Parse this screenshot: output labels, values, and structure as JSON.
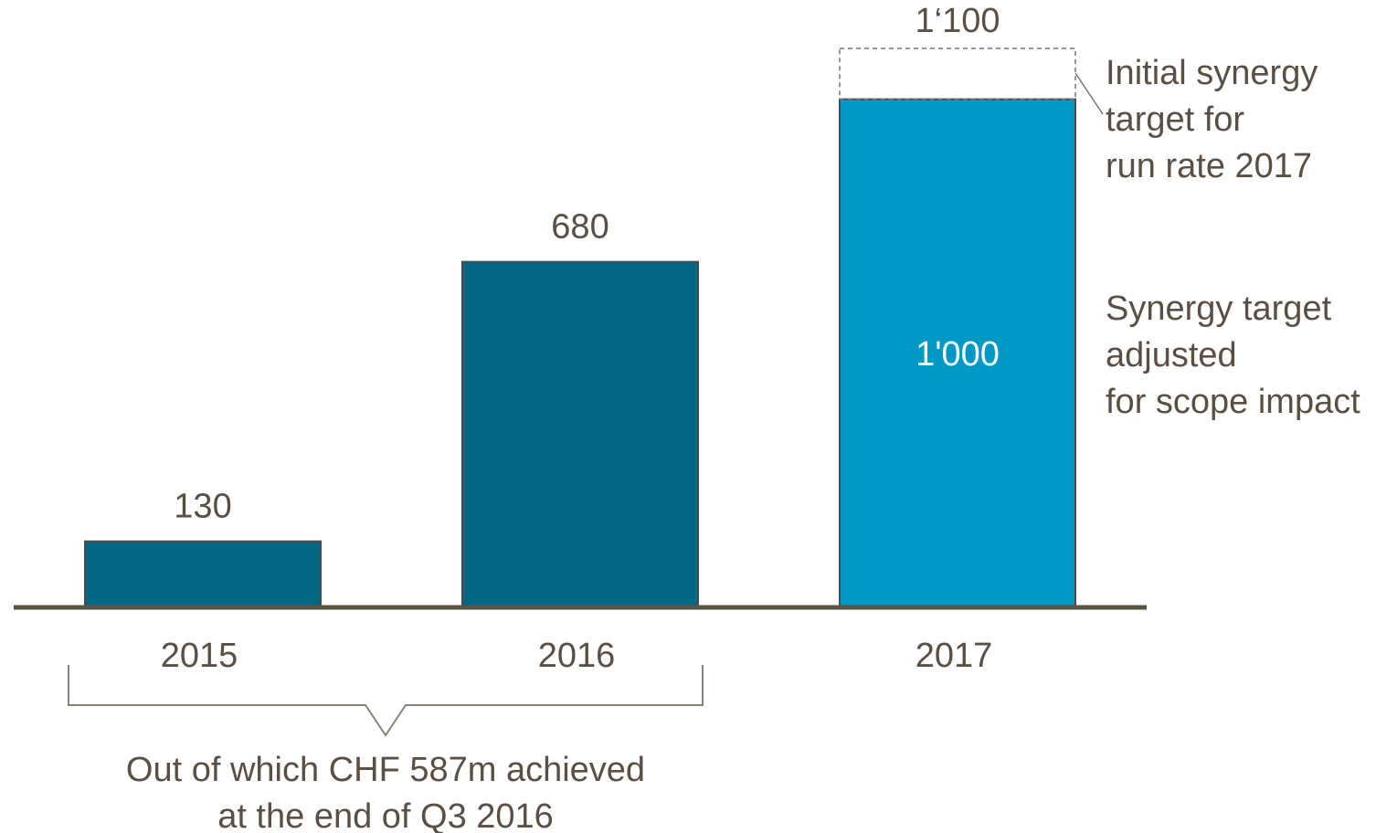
{
  "chart_data": {
    "type": "bar",
    "categories": [
      "2015",
      "2016",
      "2017"
    ],
    "values": [
      130,
      680,
      1000
    ],
    "value_labels": [
      "130",
      "680",
      "1'000"
    ],
    "colors": [
      "#006882",
      "#006882",
      "#0098c4"
    ],
    "target": {
      "value": 1100,
      "label": "1‘100"
    },
    "annotations": {
      "initial_target": [
        "Initial synergy",
        "target for",
        "run rate 2017"
      ],
      "adjusted_target": [
        "Synergy target",
        "adjusted",
        "for scope impact"
      ],
      "achieved_note": [
        "Out of which CHF 587m achieved",
        "at the end of Q3 2016"
      ]
    }
  }
}
